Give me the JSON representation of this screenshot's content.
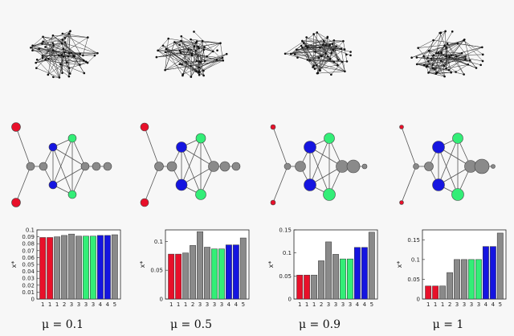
{
  "panels": [
    {
      "mu_label": "μ = 0.1",
      "node_sizes": [
        5.5,
        5.5,
        5,
        5,
        5,
        5,
        5,
        5,
        5,
        5,
        5,
        5
      ],
      "bar_chart": {
        "ylabel": "x*",
        "y_ticks": [
          "0",
          "0.01",
          "0.02",
          "0.03",
          "0.04",
          "0.05",
          "0.06",
          "0.07",
          "0.08",
          "0.09",
          "0.1"
        ],
        "ylim": [
          0,
          0.1
        ]
      }
    },
    {
      "mu_label": "μ = 0.5",
      "node_sizes": [
        5,
        5,
        5.5,
        6,
        6.5,
        7,
        6,
        6,
        6.5,
        6.5,
        6,
        5
      ],
      "bar_chart": {
        "ylabel": "x*",
        "y_ticks": [
          "0",
          "0.05",
          "0.1"
        ],
        "ylim": [
          0,
          0.12
        ]
      }
    },
    {
      "mu_label": "μ = 0.9",
      "node_sizes": [
        3,
        3,
        4,
        6.5,
        7.5,
        7.5,
        6.5,
        6.5,
        7.5,
        7.5,
        8,
        3
      ],
      "bar_chart": {
        "ylabel": "x*",
        "y_ticks": [
          "0",
          "0.05",
          "0.1",
          "0.15"
        ],
        "ylim": [
          0,
          0.15
        ]
      }
    },
    {
      "mu_label": "μ = 1",
      "node_sizes": [
        2.5,
        2.5,
        3.5,
        5.5,
        7.5,
        7.5,
        6.5,
        6.5,
        7.5,
        7.5,
        9,
        2.5
      ],
      "bar_chart": {
        "ylabel": "x*",
        "y_ticks": [
          "0",
          "0.05",
          "0.1",
          "0.15"
        ],
        "ylim": [
          0,
          0.175
        ]
      }
    }
  ],
  "chart_data": [
    {
      "type": "bar",
      "categories": [
        "1",
        "1",
        "1",
        "2",
        "3",
        "3",
        "3",
        "3",
        "4",
        "4",
        "5"
      ],
      "values": [
        0.089,
        0.089,
        0.09,
        0.092,
        0.094,
        0.091,
        0.091,
        0.091,
        0.092,
        0.092,
        0.093
      ],
      "colors": [
        "#e8102a",
        "#e8102a",
        "#8a8a8a",
        "#8a8a8a",
        "#8a8a8a",
        "#8a8a8a",
        "#33ee77",
        "#33ee77",
        "#1515e0",
        "#1515e0",
        "#8a8a8a"
      ],
      "title": "",
      "xlabel": "",
      "ylabel": "x*",
      "ylim": [
        0,
        0.1
      ]
    },
    {
      "type": "bar",
      "categories": [
        "1",
        "1",
        "1",
        "2",
        "3",
        "3",
        "3",
        "3",
        "4",
        "4",
        "5"
      ],
      "values": [
        0.078,
        0.078,
        0.08,
        0.093,
        0.117,
        0.09,
        0.087,
        0.087,
        0.094,
        0.094,
        0.106
      ],
      "colors": [
        "#e8102a",
        "#e8102a",
        "#8a8a8a",
        "#8a8a8a",
        "#8a8a8a",
        "#8a8a8a",
        "#33ee77",
        "#33ee77",
        "#1515e0",
        "#1515e0",
        "#8a8a8a"
      ],
      "title": "",
      "xlabel": "",
      "ylabel": "x*",
      "ylim": [
        0,
        0.12
      ]
    },
    {
      "type": "bar",
      "categories": [
        "1",
        "1",
        "1",
        "2",
        "3",
        "3",
        "3",
        "3",
        "4",
        "4",
        "5"
      ],
      "values": [
        0.052,
        0.052,
        0.052,
        0.083,
        0.124,
        0.097,
        0.087,
        0.087,
        0.112,
        0.112,
        0.145
      ],
      "colors": [
        "#e8102a",
        "#e8102a",
        "#8a8a8a",
        "#8a8a8a",
        "#8a8a8a",
        "#8a8a8a",
        "#33ee77",
        "#33ee77",
        "#1515e0",
        "#1515e0",
        "#8a8a8a"
      ],
      "title": "",
      "xlabel": "",
      "ylabel": "x*",
      "ylim": [
        0,
        0.15
      ]
    },
    {
      "type": "bar",
      "categories": [
        "1",
        "1",
        "1",
        "2",
        "3",
        "3",
        "3",
        "3",
        "4",
        "4",
        "5"
      ],
      "values": [
        0.033,
        0.033,
        0.033,
        0.067,
        0.1,
        0.1,
        0.1,
        0.1,
        0.133,
        0.133,
        0.167
      ],
      "colors": [
        "#e8102a",
        "#e8102a",
        "#8a8a8a",
        "#8a8a8a",
        "#8a8a8a",
        "#8a8a8a",
        "#33ee77",
        "#33ee77",
        "#1515e0",
        "#1515e0",
        "#8a8a8a"
      ],
      "title": "",
      "xlabel": "",
      "ylabel": "x*",
      "ylim": [
        0,
        0.175
      ]
    }
  ]
}
